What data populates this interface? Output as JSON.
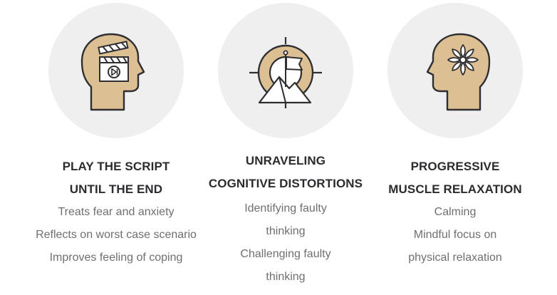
{
  "colors": {
    "circle_bg": "#efefef",
    "head_fill": "#dcbf92",
    "outline": "#2f2f33",
    "title_text": "#2b2b30",
    "body_text": "#6e6f73"
  },
  "cards": [
    {
      "icon": "head-clapperboard-play-icon",
      "title_line1": "PLAY THE SCRIPT",
      "title_line2": "UNTIL THE END",
      "items": [
        "Treats fear and anxiety",
        "Reflects on worst case scenario",
        "Improves feeling of coping"
      ]
    },
    {
      "icon": "target-mountain-flag-icon",
      "title_line1": "UNRAVELING",
      "title_line2": "COGNITIVE DISTORTIONS",
      "items": [
        "Identifying faulty",
        "thinking",
        "Challenging faulty",
        "thinking"
      ]
    },
    {
      "icon": "head-flower-icon",
      "title_line1": "PROGRESSIVE",
      "title_line2": "MUSCLE RELAXATION",
      "items": [
        "Calming",
        "Mindful focus on",
        "physical relaxation"
      ]
    }
  ]
}
